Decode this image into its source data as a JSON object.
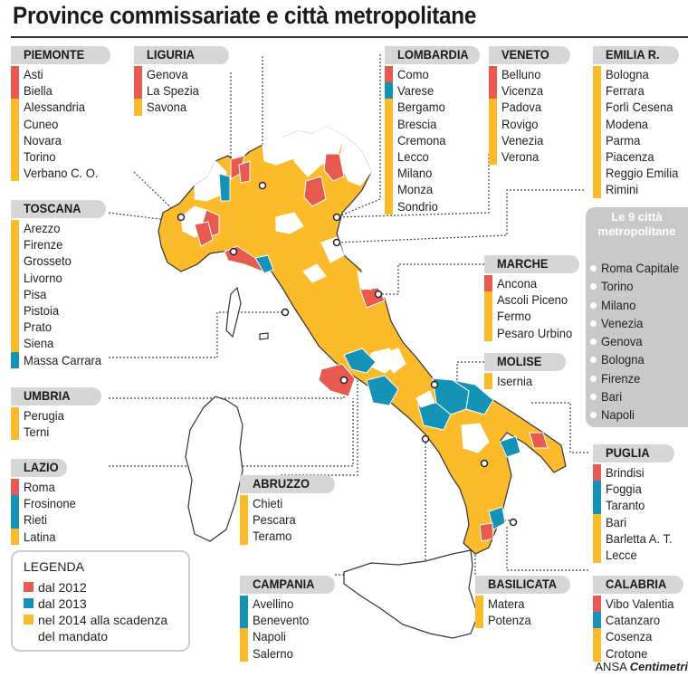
{
  "title": "Province commissariate e città metropolitane",
  "colors": {
    "c2012": "#e85a4f",
    "c2013": "#1593b6",
    "c2014": "#fbbb2a",
    "none": "#ffffff",
    "grey": "#d6d6d6"
  },
  "regions": [
    {
      "name": "PIEMONTE",
      "items": [
        [
          "Asti",
          "c2012"
        ],
        [
          "Biella",
          "c2012"
        ],
        [
          "Alessandria",
          "c2014"
        ],
        [
          "Cuneo",
          "c2014"
        ],
        [
          "Novara",
          "c2014"
        ],
        [
          "Torino",
          "c2014"
        ],
        [
          "Verbano C. O.",
          "c2014"
        ]
      ]
    },
    {
      "name": "LIGURIA",
      "items": [
        [
          "Genova",
          "c2012"
        ],
        [
          "La Spezia",
          "c2012"
        ],
        [
          "Savona",
          "c2014"
        ]
      ]
    },
    {
      "name": "LOMBARDIA",
      "items": [
        [
          "Como",
          "c2012"
        ],
        [
          "Varese",
          "c2013"
        ],
        [
          "Bergamo",
          "c2014"
        ],
        [
          "Brescia",
          "c2014"
        ],
        [
          "Cremona",
          "c2014"
        ],
        [
          "Lecco",
          "c2014"
        ],
        [
          "Milano",
          "c2014"
        ],
        [
          "Monza",
          "c2014"
        ],
        [
          "Sondrio",
          "c2014"
        ]
      ]
    },
    {
      "name": "VENETO",
      "items": [
        [
          "Belluno",
          "c2012"
        ],
        [
          "Vicenza",
          "c2012"
        ],
        [
          "Padova",
          "c2014"
        ],
        [
          "Rovigo",
          "c2014"
        ],
        [
          "Venezia",
          "c2014"
        ],
        [
          "Verona",
          "c2014"
        ]
      ]
    },
    {
      "name": "EMILIA R.",
      "items": [
        [
          "Bologna",
          "c2014"
        ],
        [
          "Ferrara",
          "c2014"
        ],
        [
          "Forlì Cesena",
          "c2014"
        ],
        [
          "Modena",
          "c2014"
        ],
        [
          "Parma",
          "c2014"
        ],
        [
          "Piacenza",
          "c2014"
        ],
        [
          "Reggio Emilia",
          "c2014"
        ],
        [
          "Rimini",
          "c2014"
        ]
      ]
    },
    {
      "name": "TOSCANA",
      "items": [
        [
          "Arezzo",
          "c2014"
        ],
        [
          "Firenze",
          "c2014"
        ],
        [
          "Grosseto",
          "c2014"
        ],
        [
          "Livorno",
          "c2014"
        ],
        [
          "Pisa",
          "c2014"
        ],
        [
          "Pistoia",
          "c2014"
        ],
        [
          "Prato",
          "c2014"
        ],
        [
          "Siena",
          "c2014"
        ],
        [
          "Massa Carrara",
          "c2013"
        ]
      ]
    },
    {
      "name": "MARCHE",
      "items": [
        [
          "Ancona",
          "c2012"
        ],
        [
          "Ascoli Piceno",
          "c2014"
        ],
        [
          "Fermo",
          "c2014"
        ],
        [
          "Pesaro Urbino",
          "c2014"
        ]
      ]
    },
    {
      "name": "MOLISE",
      "items": [
        [
          "Isernia",
          "c2014"
        ]
      ]
    },
    {
      "name": "UMBRIA",
      "items": [
        [
          "Perugia",
          "c2014"
        ],
        [
          "Terni",
          "c2014"
        ]
      ]
    },
    {
      "name": "LAZIO",
      "items": [
        [
          "Roma",
          "c2012"
        ],
        [
          "Frosinone",
          "c2013"
        ],
        [
          "Rieti",
          "c2013"
        ],
        [
          "Latina",
          "c2014"
        ]
      ]
    },
    {
      "name": "ABRUZZO",
      "items": [
        [
          "Chieti",
          "c2014"
        ],
        [
          "Pescara",
          "c2014"
        ],
        [
          "Teramo",
          "c2014"
        ]
      ]
    },
    {
      "name": "PUGLIA",
      "items": [
        [
          "Brindisi",
          "c2012"
        ],
        [
          "Foggia",
          "c2013"
        ],
        [
          "Taranto",
          "c2013"
        ],
        [
          "Bari",
          "c2014"
        ],
        [
          "Barletta A. T.",
          "c2014"
        ],
        [
          "Lecce",
          "c2014"
        ]
      ]
    },
    {
      "name": "CAMPANIA",
      "items": [
        [
          "Avellino",
          "c2013"
        ],
        [
          "Benevento",
          "c2013"
        ],
        [
          "Napoli",
          "c2014"
        ],
        [
          "Salerno",
          "c2014"
        ]
      ]
    },
    {
      "name": "BASILICATA",
      "items": [
        [
          "Matera",
          "c2014"
        ],
        [
          "Potenza",
          "c2014"
        ]
      ]
    },
    {
      "name": "CALABRIA",
      "items": [
        [
          "Vibo Valentia",
          "c2012"
        ],
        [
          "Catanzaro",
          "c2013"
        ],
        [
          "Cosenza",
          "c2014"
        ],
        [
          "Crotone",
          "c2014"
        ]
      ]
    }
  ],
  "metro": {
    "title_line1": "Le 9 città",
    "title_line2": "metropolitane",
    "items": [
      "Roma Capitale",
      "Torino",
      "Milano",
      "Venezia",
      "Genova",
      "Bologna",
      "Firenze",
      "Bari",
      "Napoli"
    ]
  },
  "legend": {
    "title": "LEGENDA",
    "items": [
      [
        "dal 2012",
        "c2012"
      ],
      [
        "dal 2013",
        "c2013"
      ],
      [
        "nel 2014 alla scadenza",
        "c2014"
      ],
      [
        "del mandato",
        ""
      ]
    ]
  },
  "credit": {
    "prefix": "ANSA",
    "brand": "Centimetri"
  }
}
